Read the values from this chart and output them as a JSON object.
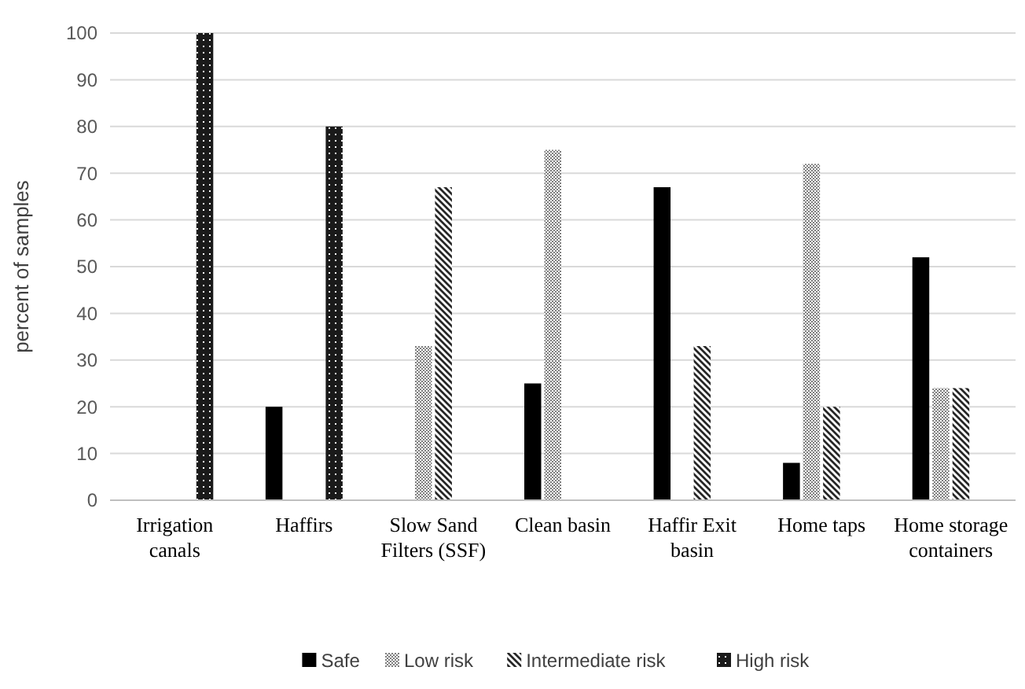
{
  "chart_data": {
    "type": "bar",
    "ylabel": "percent of samples",
    "categories": [
      "Irrigation canals",
      "Haffirs",
      "Slow Sand Filters (SSF)",
      "Clean basin",
      "Haffir Exit basin",
      "Home taps",
      "Home storage containers"
    ],
    "series": [
      {
        "name": "Safe",
        "color": "#000000",
        "values": [
          0,
          20,
          0,
          25,
          67,
          8,
          52
        ]
      },
      {
        "name": "Low risk",
        "color": "#7f7f7f",
        "values": [
          0,
          0,
          33,
          75,
          0,
          72,
          24
        ]
      },
      {
        "name": "Intermediate risk",
        "color": "#262626",
        "values": [
          0,
          0,
          67,
          0,
          33,
          20,
          24
        ]
      },
      {
        "name": "High risk",
        "color": "#1a1a1a",
        "values": [
          100,
          80,
          0,
          0,
          0,
          0,
          0
        ]
      }
    ],
    "ylim": [
      0,
      100
    ],
    "yticks": [
      0,
      10,
      20,
      30,
      40,
      50,
      60,
      70,
      80,
      90,
      100
    ],
    "grid": "y",
    "legend": "bottom"
  }
}
